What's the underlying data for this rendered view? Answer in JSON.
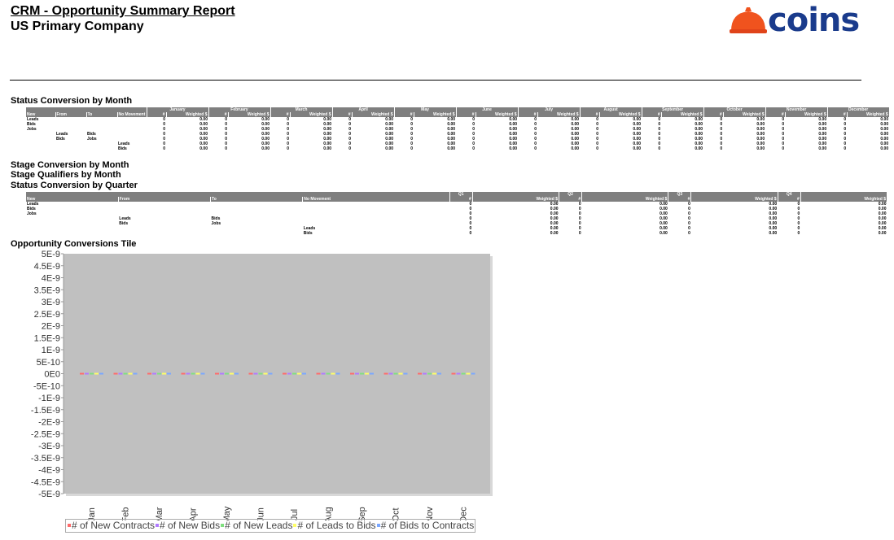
{
  "report": {
    "title": "CRM - Opportunity Summary Report",
    "company": "US Primary Company",
    "logo_text": "coins",
    "logo_icon": "hard-hat-icon"
  },
  "sections": {
    "status_month": "Status Conversion by Month",
    "stage_month": "Stage Conversion by Month",
    "stage_qual_month": "Stage Qualifiers by Month",
    "status_quarter": "Status Conversion by Quarter",
    "tile": "Opportunity Conversions Tile"
  },
  "monthly_table": {
    "headers": {
      "new": "New",
      "from": "From",
      "to": "To",
      "no_movement": "No Movement",
      "count": "#",
      "weighted": "Weighted $"
    },
    "months": [
      "January",
      "February",
      "March",
      "April",
      "May",
      "June",
      "July",
      "August",
      "September",
      "October",
      "November",
      "December"
    ],
    "rows": [
      {
        "new": "Leads",
        "from": "",
        "to": "",
        "nm": ""
      },
      {
        "new": "Bids",
        "from": "",
        "to": "",
        "nm": ""
      },
      {
        "new": "Jobs",
        "from": "",
        "to": "",
        "nm": ""
      },
      {
        "new": "",
        "from": "Leads",
        "to": "Bids",
        "nm": ""
      },
      {
        "new": "",
        "from": "Bids",
        "to": "Jobs",
        "nm": ""
      },
      {
        "new": "",
        "from": "",
        "to": "",
        "nm": "Leads"
      },
      {
        "new": "",
        "from": "",
        "to": "",
        "nm": "Bids"
      }
    ],
    "count_value": "0",
    "weighted_value": "0.00"
  },
  "quarter_table": {
    "headers": {
      "new": "New",
      "from": "From",
      "to": "To",
      "no_movement": "No Movement",
      "count": "#",
      "weighted": "Weighted $"
    },
    "quarters": [
      "Q1",
      "Q2",
      "Q3",
      "Q4"
    ],
    "rows": [
      {
        "new": "Leads",
        "from": "",
        "to": "",
        "nm": ""
      },
      {
        "new": "Bids",
        "from": "",
        "to": "",
        "nm": ""
      },
      {
        "new": "Jobs",
        "from": "",
        "to": "",
        "nm": ""
      },
      {
        "new": "",
        "from": "Leads",
        "to": "Bids",
        "nm": ""
      },
      {
        "new": "",
        "from": "Bids",
        "to": "Jobs",
        "nm": ""
      },
      {
        "new": "",
        "from": "",
        "to": "",
        "nm": "Leads"
      },
      {
        "new": "",
        "from": "",
        "to": "",
        "nm": "Bids"
      }
    ],
    "count_value": "0",
    "weighted_value": "0.00"
  },
  "chart_data": {
    "type": "line",
    "title": "",
    "xlabel": "",
    "ylabel": "",
    "categories": [
      "Jan",
      "Feb",
      "Mar",
      "Apr",
      "May",
      "Jun",
      "Jul",
      "Aug",
      "Sep",
      "Oct",
      "Nov",
      "Dec"
    ],
    "y_ticks": [
      "5E-9",
      "4.5E-9",
      "4E-9",
      "3.5E-9",
      "3E-9",
      "2.5E-9",
      "2E-9",
      "1.5E-9",
      "1E-9",
      "5E-10",
      "0E0",
      "-5E-10",
      "-1E-9",
      "-1.5E-9",
      "-2E-9",
      "-2.5E-9",
      "-3E-9",
      "-3.5E-9",
      "-4E-9",
      "-4.5E-9",
      "-5E-9"
    ],
    "ylim": [
      -5e-09,
      5e-09
    ],
    "grid": false,
    "legend_position": "bottom",
    "background": "#c0c0c0",
    "series": [
      {
        "name": "# of New Contracts",
        "color": "#ff6a6a",
        "values": [
          0,
          0,
          0,
          0,
          0,
          0,
          0,
          0,
          0,
          0,
          0,
          0
        ]
      },
      {
        "name": "# of New Bids",
        "color": "#b07aff",
        "values": [
          0,
          0,
          0,
          0,
          0,
          0,
          0,
          0,
          0,
          0,
          0,
          0
        ]
      },
      {
        "name": "# of New Leads",
        "color": "#7fe07f",
        "values": [
          0,
          0,
          0,
          0,
          0,
          0,
          0,
          0,
          0,
          0,
          0,
          0
        ]
      },
      {
        "name": "# of Leads to Bids",
        "color": "#ffff66",
        "values": [
          0,
          0,
          0,
          0,
          0,
          0,
          0,
          0,
          0,
          0,
          0,
          0
        ]
      },
      {
        "name": "# of Bids to Contracts",
        "color": "#7aa7ff",
        "values": [
          0,
          0,
          0,
          0,
          0,
          0,
          0,
          0,
          0,
          0,
          0,
          0
        ]
      }
    ]
  }
}
